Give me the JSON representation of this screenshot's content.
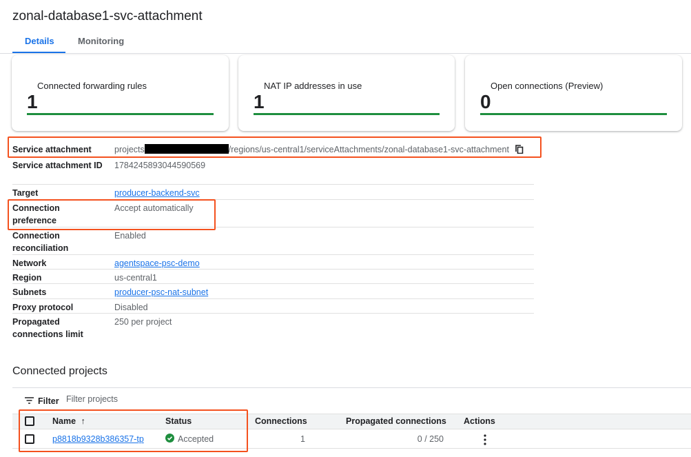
{
  "title": "zonal-database1-svc-attachment",
  "tabs": [
    {
      "label": "Details",
      "active": true
    },
    {
      "label": "Monitoring",
      "active": false
    }
  ],
  "cards": [
    {
      "label": "Connected forwarding rules",
      "value": "1"
    },
    {
      "label": "NAT IP addresses in use",
      "value": "1"
    },
    {
      "label": "Open connections (Preview)",
      "value": "0"
    }
  ],
  "details": [
    {
      "key": "Service attachment",
      "value_prefix": "projects",
      "value_suffix": "/regions/us-central1/serviceAttachments/zonal-database1-svc-attachment"
    },
    {
      "key": "Service attachment ID",
      "value": "1784245893044590569"
    },
    {
      "key": "Target",
      "value": "producer-backend-svc"
    },
    {
      "key": "Connection preference",
      "value": "Accept automatically"
    },
    {
      "key": "Connection reconciliation",
      "value": "Enabled"
    },
    {
      "key": "Network",
      "value": "agentspace-psc-demo"
    },
    {
      "key": "Region",
      "value": "us-central1"
    },
    {
      "key": "Subnets",
      "value": "producer-psc-nat-subnet"
    },
    {
      "key": "Proxy protocol",
      "value": "Disabled"
    },
    {
      "key": "Propagated connections limit",
      "value": "250 per project"
    }
  ],
  "connected": {
    "heading": "Connected projects",
    "filter_label": "Filter",
    "filter_placeholder": "Filter projects",
    "columns": [
      "Name",
      "Status",
      "Connections",
      "Propagated connections",
      "Actions"
    ],
    "rows": [
      {
        "name": "p8818b9328b386357-tp",
        "status": "Accepted",
        "connections": "1",
        "propagated": "0 / 250"
      }
    ]
  },
  "colors": {
    "accent": "#1a73e8",
    "success": "#1e8e3e",
    "highlight": "#f4511e"
  }
}
